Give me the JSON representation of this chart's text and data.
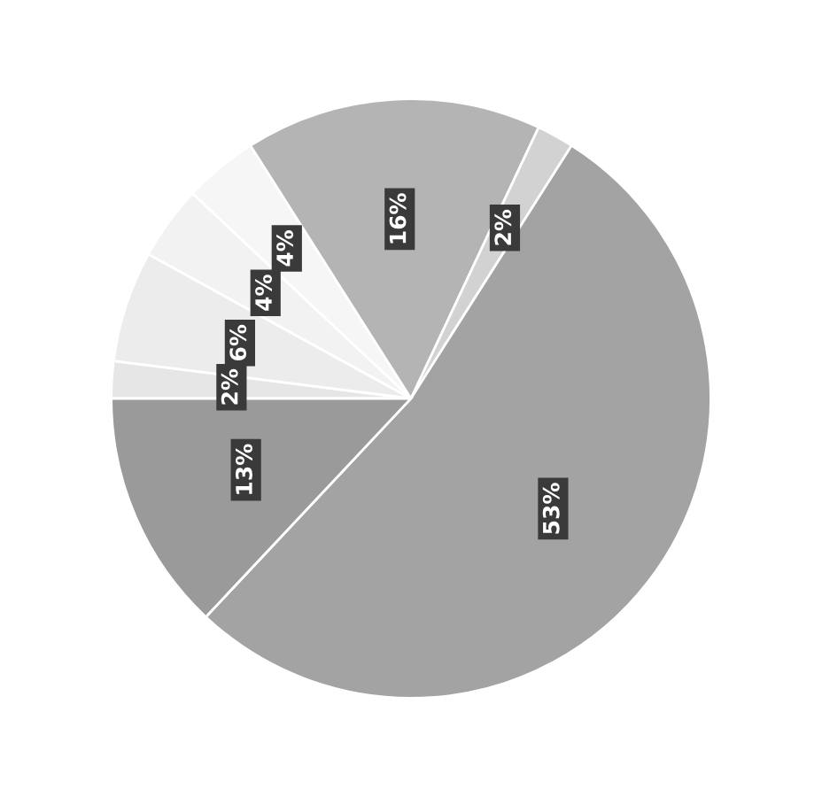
{
  "chart_data": {
    "type": "pie",
    "categories": [
      null,
      null,
      null,
      null,
      null,
      null,
      null,
      null
    ],
    "values": [
      2,
      6,
      4,
      4,
      16,
      2,
      53,
      13
    ],
    "value_labels": [
      "2%",
      "6%",
      "4%",
      "4%",
      "16%",
      "2%",
      "53%",
      "13%"
    ],
    "colors": [
      "#e6e6e6",
      "#ececec",
      "#f2f2f2",
      "#f6f6f6",
      "#b4b4b4",
      "#d2d2d2",
      "#a3a3a3",
      "#9a9a9a"
    ]
  }
}
